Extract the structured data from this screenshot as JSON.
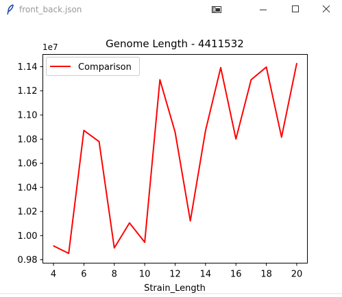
{
  "window": {
    "title": "front_back.json",
    "icons": {
      "app": "feather-icon",
      "pin": "snap-layout-icon",
      "minimize": "minimize-icon",
      "maximize": "maximize-icon",
      "close": "close-icon"
    }
  },
  "chart_data": {
    "type": "line",
    "title": "Genome Length - 4411532",
    "xlabel": "Strain_Length",
    "ylabel": "",
    "offset_label": "1e7",
    "x": [
      4,
      5,
      6,
      7,
      8,
      9,
      10,
      11,
      12,
      13,
      14,
      15,
      16,
      17,
      18,
      19,
      20
    ],
    "series": [
      {
        "name": "Comparison",
        "color": "#ff0000",
        "values": [
          0.9915,
          0.9853,
          1.0872,
          1.0779,
          0.9898,
          1.0105,
          0.9945,
          1.1292,
          1.0858,
          1.0122,
          1.087,
          1.1393,
          1.0801,
          1.1292,
          1.1397,
          1.0816,
          1.1428
        ]
      }
    ],
    "xlim": [
      3.3,
      20.7
    ],
    "ylim": [
      0.9772,
      1.1502
    ],
    "xticks": [
      4,
      6,
      8,
      10,
      12,
      14,
      16,
      18,
      20
    ],
    "xtick_labels": [
      "4",
      "6",
      "8",
      "10",
      "12",
      "14",
      "16",
      "18",
      "20"
    ],
    "yticks": [
      0.98,
      1.0,
      1.02,
      1.04,
      1.06,
      1.08,
      1.1,
      1.12,
      1.14
    ],
    "ytick_labels": [
      "0.98",
      "1.00",
      "1.02",
      "1.04",
      "1.06",
      "1.08",
      "1.10",
      "1.12",
      "1.14"
    ],
    "legend": "top-left",
    "grid": false
  }
}
